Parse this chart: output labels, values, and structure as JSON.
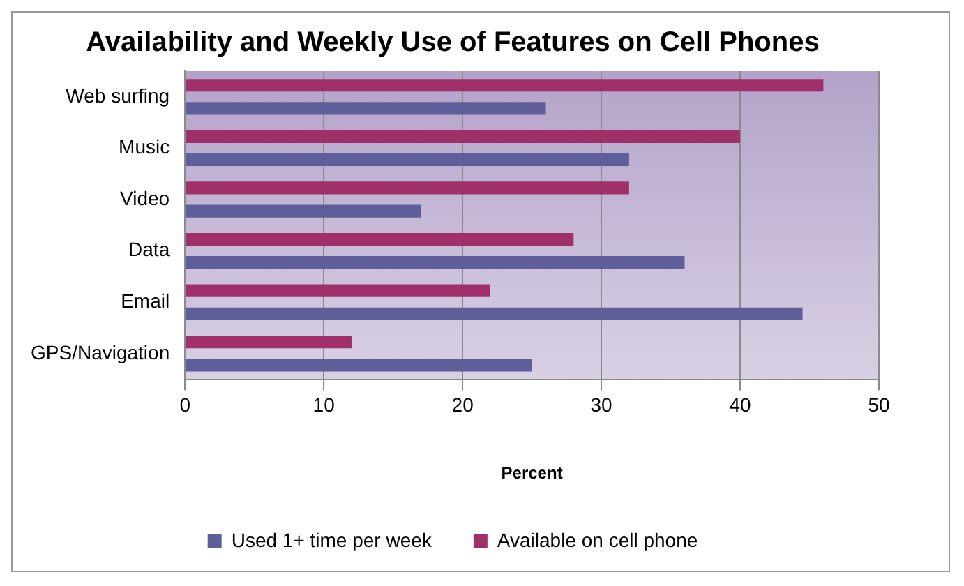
{
  "chart_data": {
    "type": "bar",
    "orientation": "horizontal",
    "title": "Availability and Weekly Use of Features on Cell Phones",
    "xlabel": "Percent",
    "categories": [
      "Web surfing",
      "Music",
      "Video",
      "Data",
      "Email",
      "GPS/Navigation"
    ],
    "series": [
      {
        "name": "Used 1+ time per week",
        "color": "#5e5e9a",
        "values": [
          26,
          32,
          17,
          36,
          44.5,
          25
        ]
      },
      {
        "name": "Available on cell phone",
        "color": "#a0306a",
        "values": [
          46,
          40,
          32,
          28,
          22,
          12
        ]
      }
    ],
    "xlim": [
      0,
      50
    ],
    "xticks": [
      0,
      10,
      20,
      30,
      40,
      50
    ],
    "grid": "x",
    "legend": "bottom"
  }
}
